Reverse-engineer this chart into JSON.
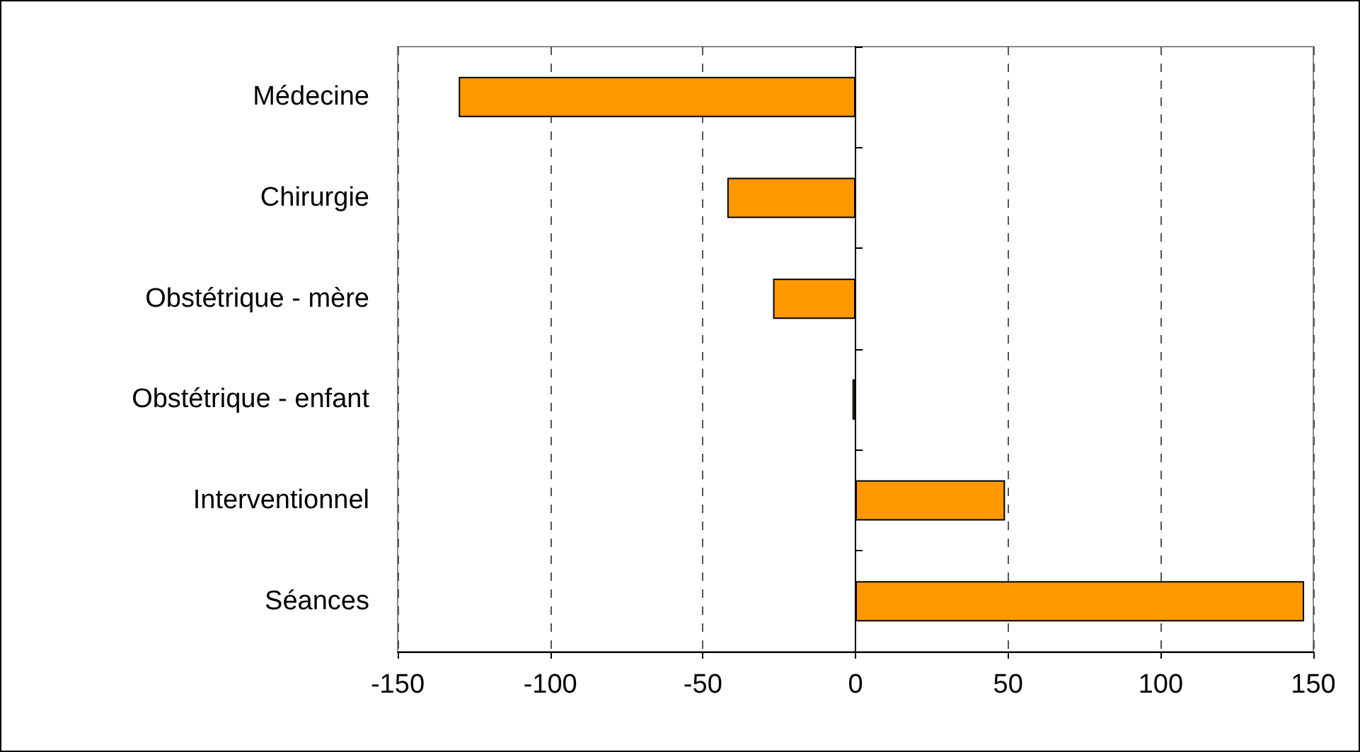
{
  "chart_data": {
    "type": "bar",
    "orientation": "horizontal",
    "categories": [
      "Médecine",
      "Chirurgie",
      "Obstétrique - mère",
      "Obstétrique - enfant",
      "Interventionnel",
      "Séances"
    ],
    "values": [
      -130,
      -42,
      -27,
      -1,
      49,
      147
    ],
    "color": "#ff9900",
    "xlim": [
      -150,
      150
    ],
    "xticks": [
      -150,
      -100,
      -50,
      0,
      50,
      100,
      150
    ],
    "grid": "x"
  }
}
